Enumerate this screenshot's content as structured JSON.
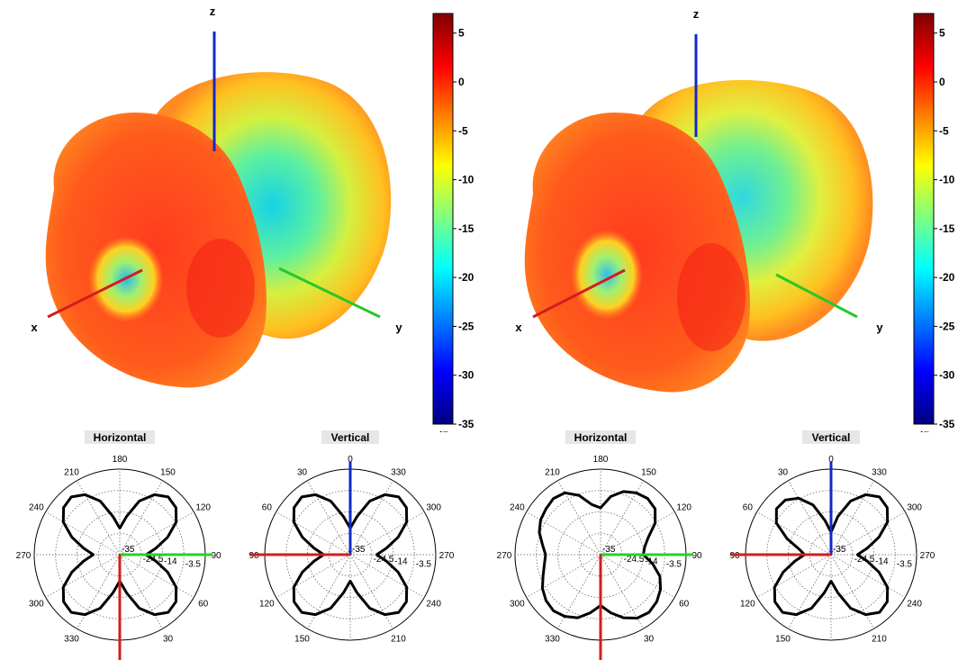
{
  "chart_data": [
    {
      "type": "3d-surface",
      "subtype": "antenna radiation pattern",
      "axes": [
        "x",
        "y",
        "z"
      ],
      "colorbar": {
        "unit": "dB",
        "ticks": [
          5,
          0,
          -5,
          -10,
          -15,
          -20,
          -25,
          -30,
          -35
        ],
        "range": [
          -35,
          7
        ],
        "colormap": "jet"
      }
    },
    {
      "type": "polar",
      "title": "Horizontal",
      "angle_labels": [
        "180",
        "150",
        "120",
        "90",
        "60",
        "30",
        "",
        "330",
        "300",
        "270",
        "240",
        "210"
      ],
      "radial_labels": [
        "-35",
        "-24.5",
        "-14",
        "-3.5"
      ],
      "rlim": [
        -35,
        7
      ],
      "series": [
        {
          "theta": [
            0,
            10,
            20,
            30,
            40,
            50,
            60,
            70,
            80,
            90,
            100,
            110,
            120,
            130,
            140,
            150,
            160,
            170,
            180,
            190,
            200,
            210,
            220,
            230,
            240,
            250,
            260,
            270,
            280,
            290,
            300,
            310,
            320,
            330,
            340,
            350
          ],
          "r": [
            -22,
            -16,
            -7,
            -1,
            2,
            1,
            -3,
            -10,
            -17,
            -22,
            -17,
            -10,
            -3,
            1,
            2,
            -1,
            -7,
            -16,
            -22,
            -16,
            -7,
            -1,
            2,
            1,
            -3,
            -10,
            -17,
            -22,
            -17,
            -10,
            -3,
            1,
            2,
            -1,
            -7,
            -16
          ]
        }
      ],
      "axes_overlay": [
        "green-arrow-90",
        "red-arrow-0"
      ]
    },
    {
      "type": "polar",
      "title": "Vertical",
      "angle_labels": [
        "0",
        "330",
        "300",
        "270",
        "240",
        "210",
        "",
        "150",
        "120",
        "90",
        "60",
        "30"
      ],
      "radial_labels": [
        "-35",
        "-24.5",
        "-14",
        "-3.5"
      ],
      "rlim": [
        -35,
        7
      ],
      "series": [
        {
          "theta": [
            0,
            10,
            20,
            30,
            40,
            50,
            60,
            70,
            80,
            90,
            100,
            110,
            120,
            130,
            140,
            150,
            160,
            170,
            180,
            190,
            200,
            210,
            220,
            230,
            240,
            250,
            260,
            270,
            280,
            290,
            300,
            310,
            320,
            330,
            340,
            350
          ],
          "r": [
            -22,
            -16,
            -7,
            -1,
            2,
            1,
            -3,
            -10,
            -17,
            -22,
            -17,
            -10,
            -3,
            1,
            2,
            -1,
            -7,
            -16,
            -22,
            -16,
            -7,
            -1,
            2,
            1,
            -3,
            -10,
            -17,
            -22,
            -17,
            -10,
            -3,
            1,
            2,
            -1,
            -7,
            -16
          ]
        }
      ],
      "axes_overlay": [
        "blue-arrow-up",
        "red-arrow-left"
      ]
    },
    {
      "type": "3d-surface",
      "subtype": "antenna radiation pattern",
      "axes": [
        "x",
        "y",
        "z"
      ],
      "colorbar": {
        "unit": "dB",
        "ticks": [
          5,
          0,
          -5,
          -10,
          -15,
          -20,
          -25,
          -30,
          -35
        ],
        "range": [
          -35,
          7
        ],
        "colormap": "jet"
      }
    },
    {
      "type": "polar",
      "title": "Horizontal",
      "angle_labels": [
        "180",
        "150",
        "120",
        "90",
        "60",
        "30",
        "",
        "330",
        "300",
        "270",
        "240",
        "210"
      ],
      "radial_labels": [
        "-35",
        "-24.5",
        "-14",
        "-3.5"
      ],
      "rlim": [
        -35,
        7
      ],
      "series": [
        {
          "theta": [
            0,
            10,
            20,
            30,
            40,
            50,
            60,
            70,
            80,
            90,
            100,
            110,
            120,
            130,
            140,
            150,
            160,
            170,
            180,
            190,
            200,
            210,
            220,
            230,
            240,
            250,
            260,
            270,
            280,
            290,
            300,
            310,
            320,
            330,
            340,
            350
          ],
          "r": [
            -12,
            -6,
            -2,
            0,
            1,
            0,
            -4,
            -10,
            -13,
            -14,
            -9,
            -4,
            -1,
            1,
            2,
            1,
            -2,
            -6,
            -10,
            -6,
            -2,
            0,
            1,
            0,
            -2,
            -5,
            -7,
            -8,
            -6,
            -3,
            -1,
            0,
            1,
            0,
            -4,
            -10
          ]
        }
      ],
      "axes_overlay": [
        "green-arrow-90",
        "red-arrow-0"
      ]
    },
    {
      "type": "polar",
      "title": "Vertical",
      "angle_labels": [
        "0",
        "330",
        "300",
        "270",
        "240",
        "210",
        "",
        "150",
        "120",
        "90",
        "60",
        "30"
      ],
      "radial_labels": [
        "-35",
        "-24.5",
        "-14",
        "-3.5"
      ],
      "rlim": [
        -35,
        7
      ],
      "series": [
        {
          "theta": [
            0,
            10,
            20,
            30,
            40,
            50,
            60,
            70,
            80,
            90,
            100,
            110,
            120,
            130,
            140,
            150,
            160,
            170,
            180,
            190,
            200,
            210,
            220,
            230,
            240,
            250,
            260,
            270,
            280,
            290,
            300,
            310,
            320,
            330,
            340,
            350
          ],
          "r": [
            -24,
            -16,
            -7,
            -1,
            2,
            1,
            -3,
            -10,
            -17,
            -22,
            -17,
            -10,
            -3,
            1,
            2,
            -1,
            -7,
            -16,
            -22,
            -16,
            -7,
            -1,
            2,
            1,
            -3,
            -10,
            -17,
            -22,
            -19,
            -12,
            -4,
            0,
            0,
            -3,
            -9,
            -18
          ]
        }
      ],
      "axes_overlay": [
        "blue-arrow-up",
        "red-arrow-left"
      ]
    }
  ]
}
